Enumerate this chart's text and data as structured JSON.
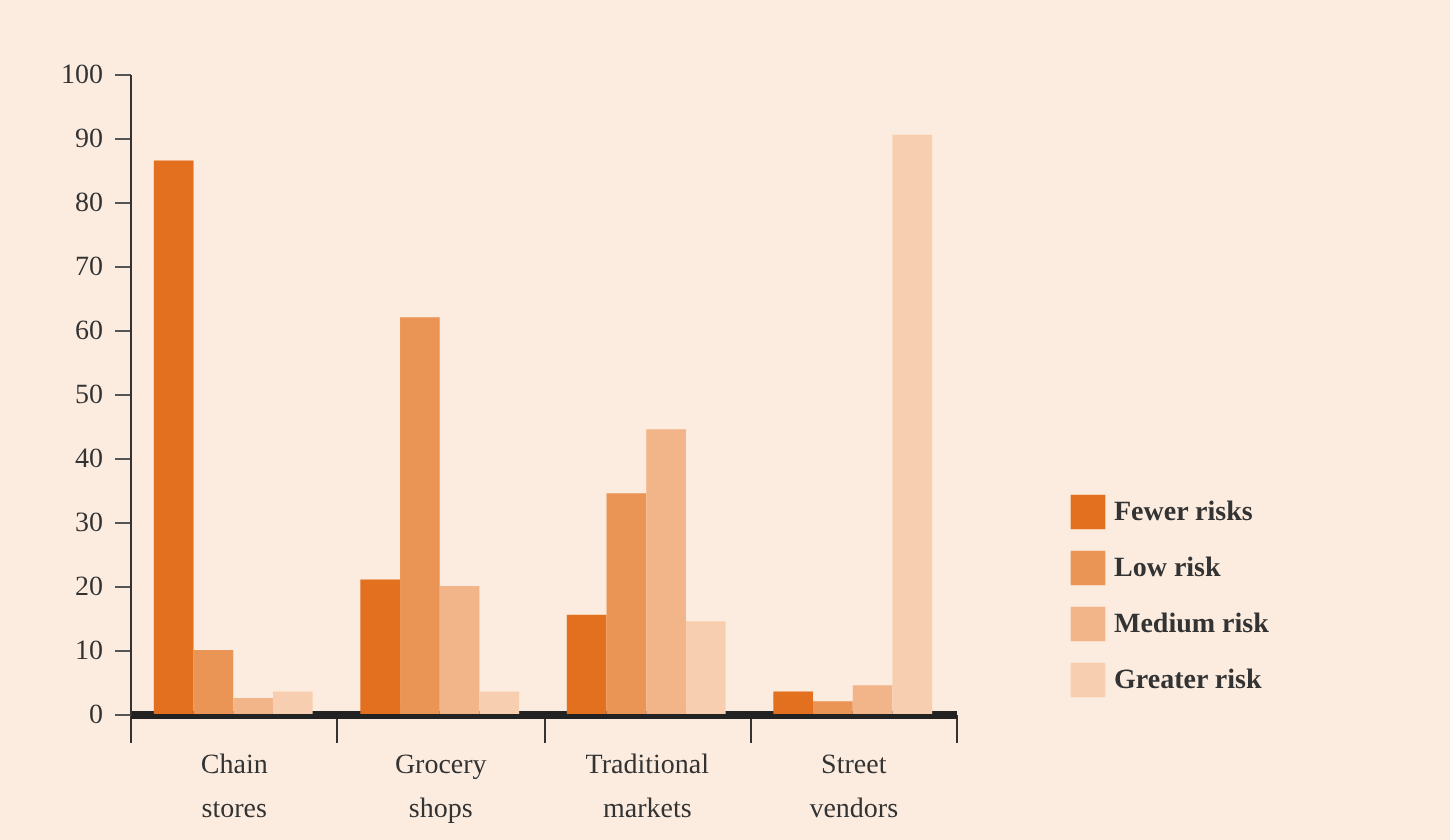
{
  "chart_data": {
    "type": "bar",
    "categories": [
      "Chain stores",
      "Grocery shops",
      "Traditional markets",
      "Street vendors"
    ],
    "series": [
      {
        "name": "Fewer risks",
        "color": "#e2701f",
        "values": [
          86.5,
          21,
          15.5,
          3.5
        ]
      },
      {
        "name": "Low risk",
        "color": "#ea9455",
        "values": [
          10,
          62,
          34.5,
          2
        ]
      },
      {
        "name": "Medium risk",
        "color": "#f2b589",
        "values": [
          2.5,
          20,
          44.5,
          4.5
        ]
      },
      {
        "name": "Greater risk",
        "color": "#f7cfb0",
        "values": [
          3.5,
          3.5,
          14.5,
          90.5
        ]
      }
    ],
    "ylim": [
      0,
      100
    ],
    "yticks": [
      0,
      10,
      20,
      30,
      40,
      50,
      60,
      70,
      80,
      90,
      100
    ],
    "grid": false,
    "legend": "right"
  }
}
